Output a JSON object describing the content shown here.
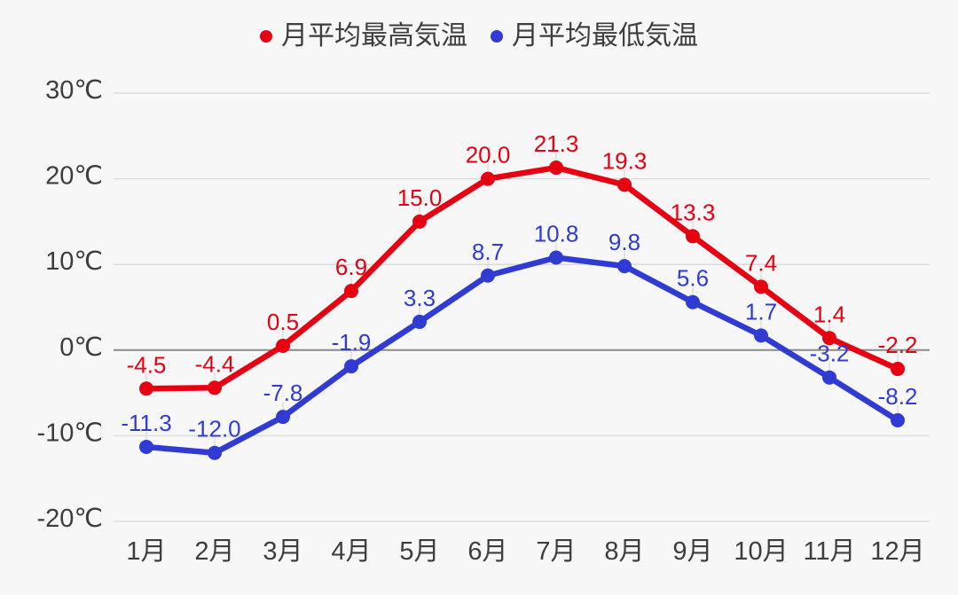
{
  "legend": {
    "high_label": "月平均最高気温",
    "low_label": "月平均最低気温"
  },
  "colors": {
    "high": "#e60012",
    "low": "#2f3bd3",
    "background": "#f7f7f7",
    "grid": "#d8d8d8",
    "zero_line": "#8a8a8a",
    "leader_line": "#dcdcdc",
    "axis_text": "#3d3d3d"
  },
  "chart_data": {
    "type": "line",
    "categories": [
      "1月",
      "2月",
      "3月",
      "4月",
      "5月",
      "6月",
      "7月",
      "8月",
      "9月",
      "10月",
      "11月",
      "12月"
    ],
    "series": [
      {
        "name": "月平均最高気温",
        "color": "#e60012",
        "values": [
          -4.5,
          -4.4,
          0.5,
          6.9,
          15.0,
          20.0,
          21.3,
          19.3,
          13.3,
          7.4,
          1.4,
          -2.2
        ]
      },
      {
        "name": "月平均最低気温",
        "color": "#2f3bd3",
        "values": [
          -11.3,
          -12.0,
          -7.8,
          -1.9,
          3.3,
          8.7,
          10.8,
          9.8,
          5.6,
          1.7,
          -3.2,
          -8.2
        ]
      }
    ],
    "title": "",
    "xlabel": "",
    "ylabel": "",
    "yticks": {
      "labels": [
        "30℃",
        "20℃",
        "10℃",
        "0℃",
        "-10℃",
        "-20℃"
      ],
      "values": [
        30,
        20,
        10,
        0,
        -10,
        -20
      ]
    },
    "ylim": [
      -20,
      30
    ],
    "grid": "horizontal",
    "zero_line_emphasized": true,
    "legend_position": "top",
    "data_labels": true,
    "data_label_decimals": 1
  }
}
